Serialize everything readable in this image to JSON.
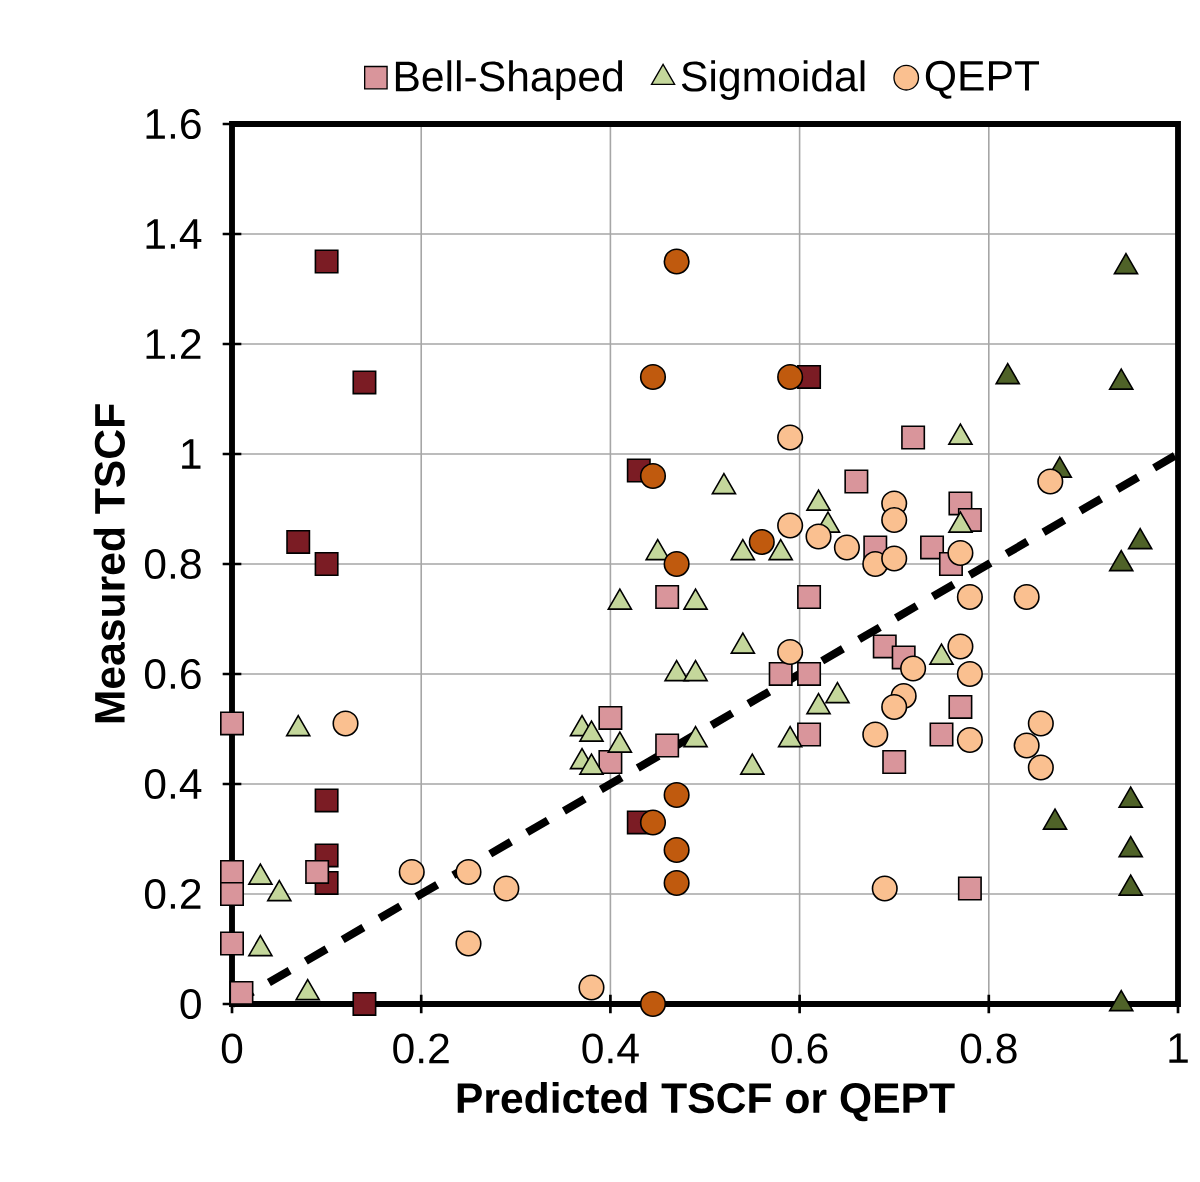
{
  "chart_data": {
    "type": "scatter",
    "xlabel": "Predicted TSCF or QEPT",
    "ylabel": "Measured TSCF",
    "xlim": [
      0,
      1
    ],
    "ylim": [
      0,
      1.6
    ],
    "xticks": [
      0,
      0.2,
      0.4,
      0.6,
      0.8,
      1
    ],
    "yticks": [
      0,
      0.2,
      0.4,
      0.6,
      0.8,
      1,
      1.2,
      1.4,
      1.6
    ],
    "grid": true,
    "legend": "top",
    "series": [
      {
        "name": "Bell-Shaped",
        "marker": "square",
        "color": "#d9959b",
        "x": [
          0.1,
          0.14,
          0.07,
          0.1,
          0.1,
          0.1,
          0.1,
          0.14,
          0.43,
          0.43,
          0.61,
          0,
          0,
          0,
          0,
          0.01,
          0.09,
          0.46,
          0.61,
          0.58,
          0.61,
          0.46,
          0.4,
          0.4,
          0.61,
          0.69,
          0.71,
          0.77,
          0.75,
          0.7,
          0.78,
          0.72,
          0.66,
          0.77,
          0.78,
          0.74,
          0.76,
          0.68
        ],
        "values": [
          1.35,
          1.13,
          0.84,
          0.8,
          0.37,
          0.27,
          0.22,
          0.0,
          0.97,
          0.33,
          1.14,
          0.51,
          0.24,
          0.2,
          0.11,
          0.02,
          0.24,
          0.74,
          0.74,
          0.6,
          0.6,
          0.47,
          0.52,
          0.44,
          0.49,
          0.65,
          0.63,
          0.54,
          0.49,
          0.44,
          0.21,
          1.03,
          0.95,
          0.91,
          0.88,
          0.83,
          0.8,
          0.83
        ],
        "colors": [
          "#7b1c24",
          "#7b1c24",
          "#7b1c24",
          "#7b1c24",
          "#7b1c24",
          "#7b1c24",
          "#7b1c24",
          "#7b1c24",
          "#7b1c24",
          "#7b1c24",
          "#7b1c24",
          "#d9959b",
          "#d9959b",
          "#d9959b",
          "#d9959b",
          "#d9959b",
          "#d9959b",
          "#d9959b",
          "#d9959b",
          "#d9959b",
          "#d9959b",
          "#d9959b",
          "#d9959b",
          "#d9959b",
          "#d9959b",
          "#d9959b",
          "#d9959b",
          "#d9959b",
          "#d9959b",
          "#d9959b",
          "#d9959b",
          "#d9959b",
          "#d9959b",
          "#d9959b",
          "#d9959b",
          "#d9959b",
          "#d9959b",
          "#d9959b"
        ]
      },
      {
        "name": "Sigmoidal",
        "marker": "triangle",
        "color": "#c4d79b",
        "x": [
          0.07,
          0.03,
          0.05,
          0.03,
          0.08,
          0.37,
          0.37,
          0.41,
          0.49,
          0.54,
          0.47,
          0.49,
          0.38,
          0.41,
          0.49,
          0.55,
          0.59,
          0.62,
          0.64,
          0.75,
          0.38,
          0.77,
          0.52,
          0.45,
          0.54,
          0.58,
          0.62,
          0.63,
          0.77,
          0.945,
          0.82,
          0.94,
          0.875,
          0.96,
          0.94,
          0.87,
          0.95,
          0.95,
          0.95,
          0.94
        ],
        "values": [
          0.5,
          0.23,
          0.2,
          0.1,
          0.02,
          0.5,
          0.44,
          0.73,
          0.73,
          0.65,
          0.6,
          0.6,
          0.49,
          0.47,
          0.48,
          0.43,
          0.48,
          0.54,
          0.56,
          0.63,
          0.43,
          1.03,
          0.94,
          0.82,
          0.82,
          0.82,
          0.91,
          0.87,
          0.87,
          1.34,
          1.14,
          1.13,
          0.97,
          0.84,
          0.8,
          0.33,
          0.37,
          0.28,
          0.21,
          0.0
        ],
        "colors": [
          "#c4d79b",
          "#c4d79b",
          "#c4d79b",
          "#c4d79b",
          "#c4d79b",
          "#c4d79b",
          "#c4d79b",
          "#c4d79b",
          "#c4d79b",
          "#c4d79b",
          "#c4d79b",
          "#c4d79b",
          "#c4d79b",
          "#c4d79b",
          "#c4d79b",
          "#c4d79b",
          "#c4d79b",
          "#c4d79b",
          "#c4d79b",
          "#c4d79b",
          "#c4d79b",
          "#c4d79b",
          "#c4d79b",
          "#c4d79b",
          "#c4d79b",
          "#c4d79b",
          "#c4d79b",
          "#c4d79b",
          "#c4d79b",
          "#4f6228",
          "#4f6228",
          "#4f6228",
          "#4f6228",
          "#4f6228",
          "#4f6228",
          "#4f6228",
          "#4f6228",
          "#4f6228",
          "#4f6228",
          "#4f6228"
        ]
      },
      {
        "name": "QEPT",
        "marker": "circle",
        "color": "#fac090",
        "x": [
          0.12,
          0.19,
          0.25,
          0.29,
          0.25,
          0.38,
          0.59,
          0.59,
          0.62,
          0.65,
          0.68,
          0.7,
          0.7,
          0.7,
          0.77,
          0.865,
          0.78,
          0.84,
          0.59,
          0.77,
          0.72,
          0.78,
          0.71,
          0.7,
          0.68,
          0.78,
          0.855,
          0.84,
          0.855,
          0.69,
          0.47,
          0.445,
          0.59,
          0.445,
          0.56,
          0.47,
          0.47,
          0.445,
          0.47,
          0.47,
          0.445
        ],
        "values": [
          0.51,
          0.24,
          0.24,
          0.21,
          0.11,
          0.03,
          1.03,
          0.87,
          0.85,
          0.83,
          0.8,
          0.91,
          0.88,
          0.81,
          0.82,
          0.95,
          0.74,
          0.74,
          0.64,
          0.65,
          0.61,
          0.6,
          0.56,
          0.54,
          0.49,
          0.48,
          0.51,
          0.47,
          0.43,
          0.21,
          1.35,
          1.14,
          1.14,
          0.96,
          0.84,
          0.8,
          0.38,
          0.33,
          0.28,
          0.22,
          0.0
        ],
        "colors": [
          "#fac090",
          "#fac090",
          "#fac090",
          "#fac090",
          "#fac090",
          "#fac090",
          "#fac090",
          "#fac090",
          "#fac090",
          "#fac090",
          "#fac090",
          "#fac090",
          "#fac090",
          "#fac090",
          "#fac090",
          "#fac090",
          "#fac090",
          "#fac090",
          "#fac090",
          "#fac090",
          "#fac090",
          "#fac090",
          "#fac090",
          "#fac090",
          "#fac090",
          "#fac090",
          "#fac090",
          "#fac090",
          "#fac090",
          "#fac090",
          "#c05a0e",
          "#c05a0e",
          "#c05a0e",
          "#c05a0e",
          "#c05a0e",
          "#c05a0e",
          "#c05a0e",
          "#c05a0e",
          "#c05a0e",
          "#c05a0e",
          "#c05a0e"
        ]
      },
      {
        "type": "line",
        "line_style": "dashed",
        "color": "#000000",
        "x": [
          0,
          1
        ],
        "values": [
          0,
          1
        ]
      }
    ]
  }
}
